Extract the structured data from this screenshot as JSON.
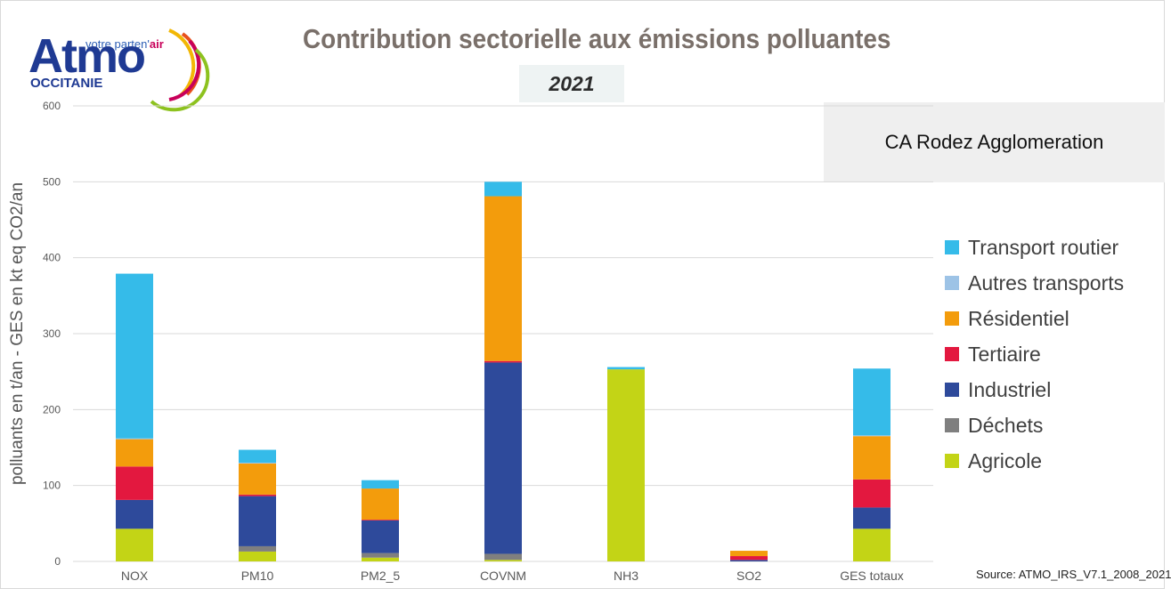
{
  "logo": {
    "word": "Atmo",
    "tagline_pre": "votre parten'",
    "tagline_air": "air",
    "region": "OCCITANIE"
  },
  "colors": {
    "title": "#7a706a",
    "grid": "#d9d9d9",
    "axis_text": "#595959"
  },
  "chart_data": {
    "type": "bar",
    "stacked": true,
    "title": "Contribution sectorielle aux émissions polluantes",
    "subtitle": "2021",
    "zone": "CA Rodez Agglomeration",
    "ylabel": "polluants en t/an - GES en kt eq CO2/an",
    "ylim": [
      0,
      600
    ],
    "yticks": [
      0,
      100,
      200,
      300,
      400,
      500,
      600
    ],
    "grid": true,
    "legend_position": "right",
    "categories": [
      "NOX",
      "PM10",
      "PM2_5",
      "COVNM",
      "NH3",
      "SO2",
      "GES totaux"
    ],
    "series": [
      {
        "name": "Agricole",
        "color": "#c3d416",
        "values": [
          43,
          13,
          5,
          2,
          253,
          0,
          43
        ]
      },
      {
        "name": "Déchets",
        "color": "#7f7f7f",
        "values": [
          0,
          7,
          6,
          8,
          0,
          0,
          0
        ]
      },
      {
        "name": "Industriel",
        "color": "#2e4a9b",
        "values": [
          38,
          66,
          43,
          252,
          0,
          2,
          28
        ]
      },
      {
        "name": "Tertiaire",
        "color": "#e3183f",
        "values": [
          44,
          2,
          1,
          2,
          0,
          5,
          37
        ]
      },
      {
        "name": "Résidentiel",
        "color": "#f39c0c",
        "values": [
          36,
          41,
          41,
          217,
          0,
          7,
          57
        ]
      },
      {
        "name": "Autres transports",
        "color": "#9dc3e6",
        "values": [
          1,
          1,
          0,
          0,
          0,
          0,
          1
        ]
      },
      {
        "name": "Transport routier",
        "color": "#35bbe9",
        "values": [
          217,
          17,
          11,
          19,
          3,
          0,
          88
        ]
      }
    ]
  },
  "legend_order": [
    "Transport routier",
    "Autres transports",
    "Résidentiel",
    "Tertiaire",
    "Industriel",
    "Déchets",
    "Agricole"
  ],
  "source": "Source: ATMO_IRS_V7.1_2008_2021"
}
